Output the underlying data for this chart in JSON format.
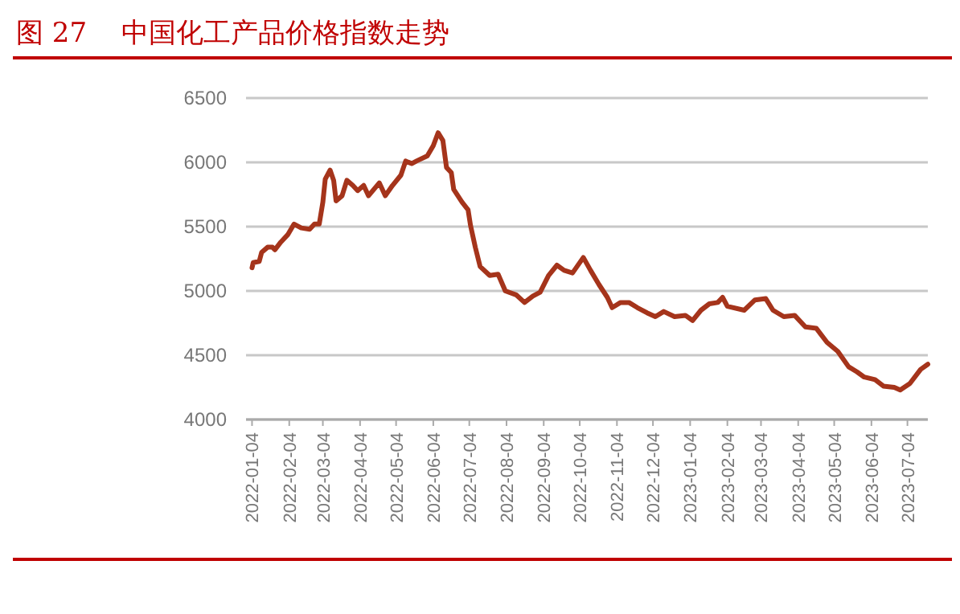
{
  "chart_data": {
    "type": "line",
    "title": "图 27    中国化工产品价格指数走势",
    "x": [
      "2022-01-04",
      "2022-01-05",
      "2022-01-10",
      "2022-01-12",
      "2022-01-17",
      "2022-01-21",
      "2022-01-23",
      "2022-01-28",
      "2022-02-03",
      "2022-02-08",
      "2022-02-14",
      "2022-02-21",
      "2022-02-25",
      "2022-03-01",
      "2022-03-04",
      "2022-03-06",
      "2022-03-10",
      "2022-03-13",
      "2022-03-15",
      "2022-03-20",
      "2022-03-24",
      "2022-03-29",
      "2022-04-02",
      "2022-04-07",
      "2022-04-11",
      "2022-04-20",
      "2022-04-25",
      "2022-05-01",
      "2022-05-08",
      "2022-05-12",
      "2022-05-17",
      "2022-05-21",
      "2022-05-30",
      "2022-06-04",
      "2022-06-08",
      "2022-06-12",
      "2022-06-15",
      "2022-06-19",
      "2022-06-21",
      "2022-06-28",
      "2022-07-03",
      "2022-07-05",
      "2022-07-09",
      "2022-07-13",
      "2022-07-21",
      "2022-07-28",
      "2022-08-03",
      "2022-08-12",
      "2022-08-19",
      "2022-08-26",
      "2022-09-01",
      "2022-09-08",
      "2022-09-15",
      "2022-09-21",
      "2022-09-28",
      "2022-10-07",
      "2022-10-13",
      "2022-10-20",
      "2022-10-27",
      "2022-10-31",
      "2022-11-07",
      "2022-11-14",
      "2022-11-21",
      "2022-11-29",
      "2022-12-06",
      "2022-12-13",
      "2022-12-22",
      "2022-12-31",
      "2023-01-06",
      "2023-01-13",
      "2023-01-20",
      "2023-01-27",
      "2023-01-31",
      "2023-02-04",
      "2023-02-18",
      "2023-02-27",
      "2023-03-08",
      "2023-03-14",
      "2023-03-23",
      "2023-04-01",
      "2023-04-10",
      "2023-04-19",
      "2023-04-28",
      "2023-05-07",
      "2023-05-16",
      "2023-05-23",
      "2023-05-29",
      "2023-06-07",
      "2023-06-14",
      "2023-06-23",
      "2023-06-28",
      "2023-07-06",
      "2023-07-15",
      "2023-07-21"
    ],
    "series": [
      {
        "color": "#a5341b",
        "values": [
          5180,
          5220,
          5230,
          5300,
          5340,
          5340,
          5320,
          5380,
          5440,
          5520,
          5490,
          5480,
          5520,
          5520,
          5690,
          5870,
          5940,
          5860,
          5700,
          5740,
          5860,
          5820,
          5780,
          5820,
          5740,
          5840,
          5740,
          5820,
          5900,
          6010,
          5990,
          6010,
          6050,
          6130,
          6230,
          6170,
          5960,
          5920,
          5790,
          5690,
          5630,
          5510,
          5340,
          5190,
          5120,
          5130,
          5000,
          4970,
          4910,
          4960,
          4990,
          5120,
          5200,
          5160,
          5140,
          5260,
          5160,
          5050,
          4950,
          4870,
          4910,
          4910,
          4870,
          4830,
          4800,
          4840,
          4800,
          4810,
          4770,
          4850,
          4900,
          4910,
          4950,
          4880,
          4850,
          4930,
          4940,
          4850,
          4800,
          4810,
          4720,
          4710,
          4600,
          4530,
          4410,
          4370,
          4330,
          4310,
          4260,
          4250,
          4230,
          4280,
          4390,
          4430
        ]
      }
    ],
    "xlim": [
      "2021-12-30",
      "2023-07-21"
    ],
    "xticks": [
      "2022-01-04",
      "2022-02-04",
      "2022-03-04",
      "2022-04-04",
      "2022-05-04",
      "2022-06-04",
      "2022-07-04",
      "2022-08-04",
      "2022-09-04",
      "2022-10-04",
      "2022-11-04",
      "2022-12-04",
      "2023-01-04",
      "2023-02-04",
      "2023-03-04",
      "2023-04-04",
      "2023-05-04",
      "2023-06-04",
      "2023-07-04"
    ],
    "ylim": [
      4000,
      6500
    ],
    "yticks": [
      4000,
      4500,
      5000,
      5500,
      6000,
      6500
    ],
    "grid": "y",
    "marker": "none",
    "line_style": "solid"
  }
}
